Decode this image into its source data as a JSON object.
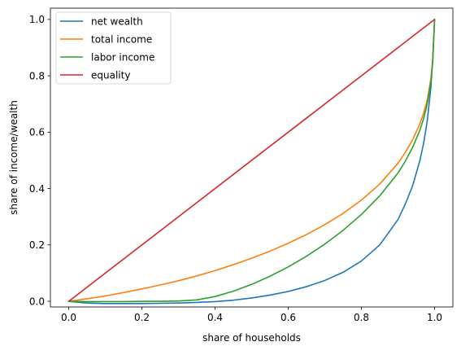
{
  "chart_data": {
    "type": "line",
    "title": "",
    "xlabel": "share of households",
    "ylabel": "share of income/wealth",
    "xlim": [
      -0.05,
      1.05
    ],
    "ylim": [
      -0.02,
      1.04
    ],
    "xticks": [
      0.0,
      0.2,
      0.4,
      0.6,
      0.8,
      1.0
    ],
    "xtick_labels": [
      "0.0",
      "0.2",
      "0.4",
      "0.6",
      "0.8",
      "1.0"
    ],
    "yticks": [
      0.0,
      0.2,
      0.4,
      0.6,
      0.8,
      1.0
    ],
    "ytick_labels": [
      "0.0",
      "0.2",
      "0.4",
      "0.6",
      "0.8",
      "1.0"
    ],
    "grid": false,
    "legend": {
      "position": "top-left"
    },
    "series": [
      {
        "name": "net wealth",
        "color": "#1f77b4",
        "x": [
          0,
          0.05,
          0.1,
          0.15,
          0.2,
          0.25,
          0.3,
          0.35,
          0.4,
          0.45,
          0.5,
          0.55,
          0.6,
          0.65,
          0.7,
          0.75,
          0.8,
          0.85,
          0.9,
          0.92,
          0.94,
          0.96,
          0.97,
          0.98,
          0.99,
          0.995,
          1.0
        ],
        "y": [
          0,
          -0.006,
          -0.008,
          -0.008,
          -0.008,
          -0.007,
          -0.006,
          -0.004,
          -0.001,
          0.004,
          0.012,
          0.022,
          0.035,
          0.052,
          0.074,
          0.103,
          0.143,
          0.2,
          0.29,
          0.345,
          0.41,
          0.5,
          0.56,
          0.64,
          0.76,
          0.86,
          1.0
        ]
      },
      {
        "name": "total income",
        "color": "#ff7f0e",
        "x": [
          0,
          0.05,
          0.1,
          0.15,
          0.2,
          0.25,
          0.3,
          0.35,
          0.4,
          0.45,
          0.5,
          0.55,
          0.6,
          0.65,
          0.7,
          0.75,
          0.8,
          0.85,
          0.9,
          0.92,
          0.94,
          0.96,
          0.97,
          0.98,
          0.99,
          0.995,
          1.0
        ],
        "y": [
          0,
          0.009,
          0.019,
          0.031,
          0.044,
          0.058,
          0.073,
          0.09,
          0.109,
          0.13,
          0.153,
          0.178,
          0.206,
          0.237,
          0.272,
          0.312,
          0.359,
          0.416,
          0.49,
          0.528,
          0.573,
          0.63,
          0.667,
          0.715,
          0.79,
          0.86,
          1.0
        ]
      },
      {
        "name": "labor income",
        "color": "#2ca02c",
        "x": [
          0,
          0.05,
          0.1,
          0.15,
          0.2,
          0.25,
          0.3,
          0.35,
          0.4,
          0.45,
          0.5,
          0.55,
          0.6,
          0.65,
          0.7,
          0.75,
          0.8,
          0.85,
          0.9,
          0.92,
          0.94,
          0.96,
          0.97,
          0.98,
          0.99,
          0.995,
          1.0
        ],
        "y": [
          0,
          -0.001,
          -0.001,
          -0.001,
          0,
          0,
          0.001,
          0.005,
          0.017,
          0.036,
          0.06,
          0.089,
          0.122,
          0.16,
          0.203,
          0.252,
          0.308,
          0.374,
          0.455,
          0.497,
          0.546,
          0.608,
          0.648,
          0.7,
          0.78,
          0.85,
          1.0
        ]
      },
      {
        "name": "equality",
        "color": "#d62728",
        "x": [
          0,
          1.0
        ],
        "y": [
          0,
          1.0
        ]
      }
    ]
  }
}
